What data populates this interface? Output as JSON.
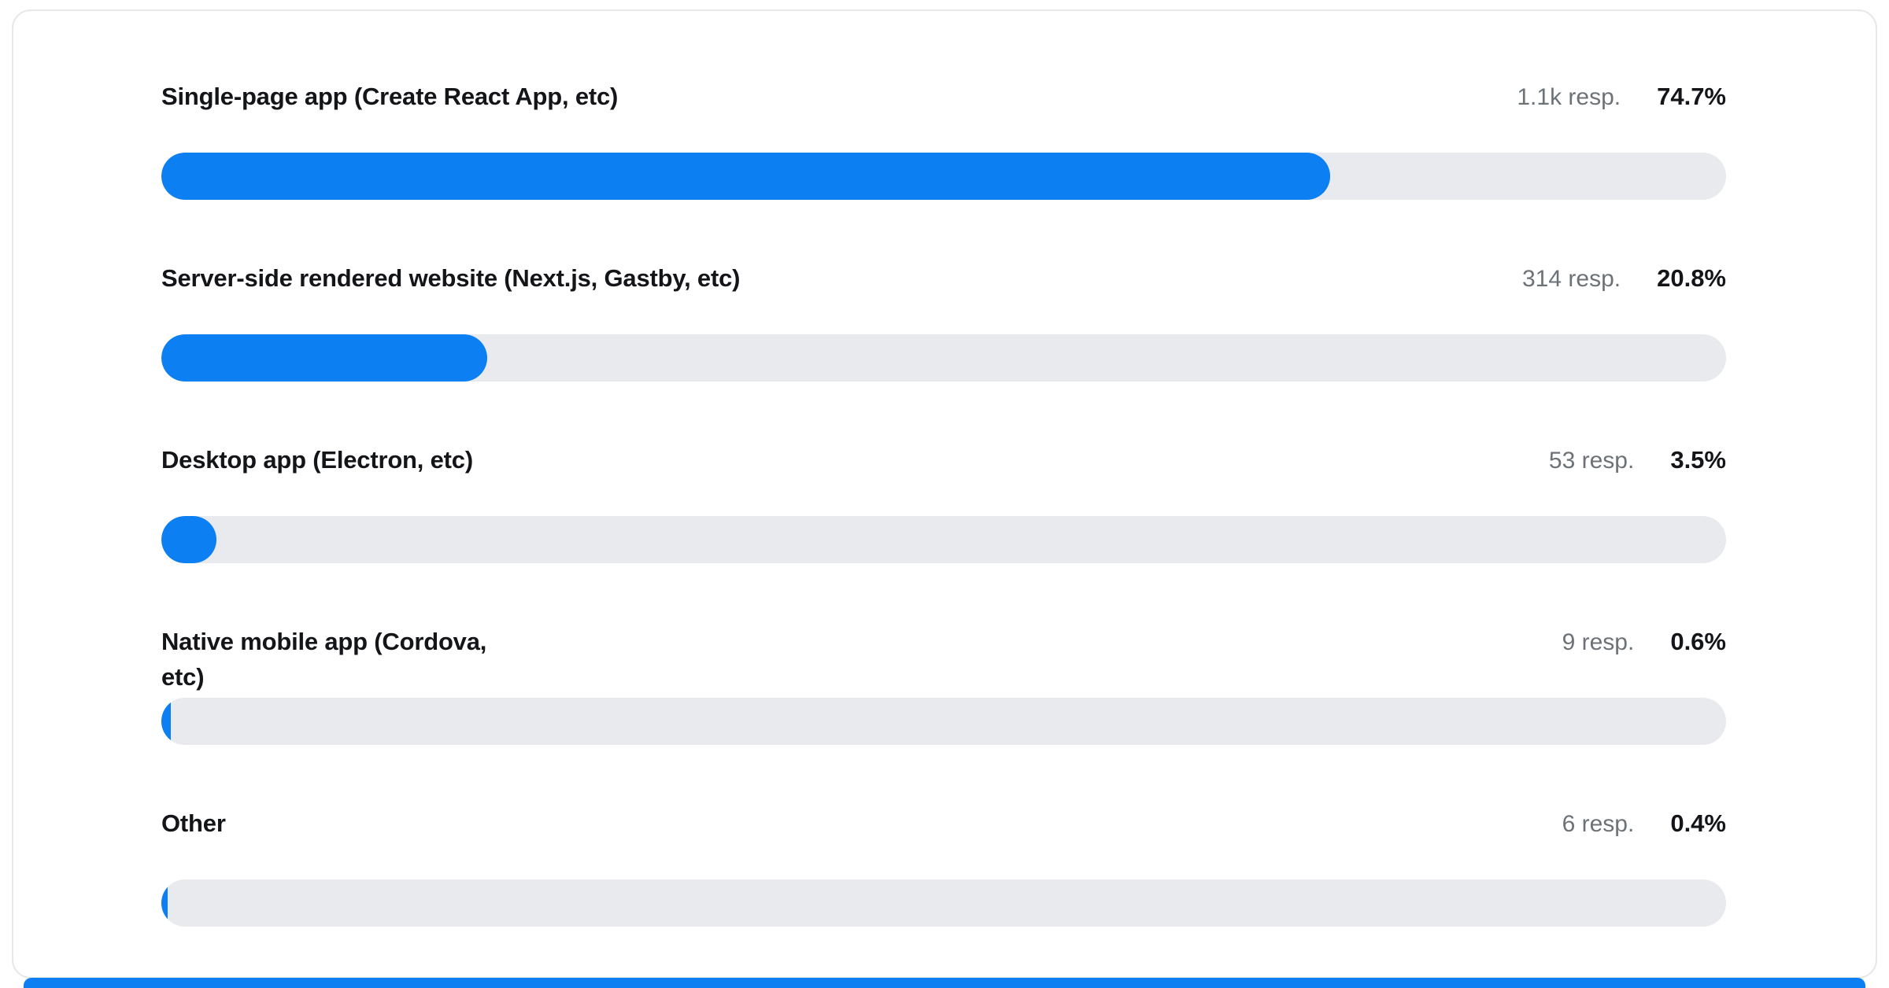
{
  "colors": {
    "accent": "#0c7ff2",
    "track": "#e9eaed",
    "label_text": "#141519",
    "responses_text": "#6d7277"
  },
  "chart_data": {
    "type": "bar",
    "orientation": "horizontal",
    "title": "",
    "xlabel": "",
    "ylabel": "",
    "xlim": [
      0,
      100
    ],
    "value_unit": "%",
    "grid": false,
    "legend": false,
    "categories": [
      "Single-page app (Create React App, etc)",
      "Server-side rendered website (Next.js, Gastby, etc)",
      "Desktop app (Electron, etc)",
      "Native mobile app (Cordova, etc)",
      "Other"
    ],
    "values": [
      74.7,
      20.8,
      3.5,
      0.6,
      0.4
    ],
    "response_counts": [
      "1.1k resp.",
      "314 resp.",
      "53 resp.",
      "9 resp.",
      "6 resp."
    ]
  },
  "rows": [
    {
      "label": "Single-page app (Create React App, etc)",
      "responses": "1.1k resp.",
      "percent_label": "74.7%",
      "percent": 74.7
    },
    {
      "label": "Server-side rendered website (Next.js, Gastby, etc)",
      "responses": "314 resp.",
      "percent_label": "20.8%",
      "percent": 20.8
    },
    {
      "label": "Desktop app (Electron, etc)",
      "responses": "53 resp.",
      "percent_label": "3.5%",
      "percent": 3.5
    },
    {
      "label": "Native mobile app (Cordova,\netc)",
      "responses": "9 resp.",
      "percent_label": "0.6%",
      "percent": 0.6
    },
    {
      "label": "Other",
      "responses": "6 resp.",
      "percent_label": "0.4%",
      "percent": 0.4
    }
  ]
}
